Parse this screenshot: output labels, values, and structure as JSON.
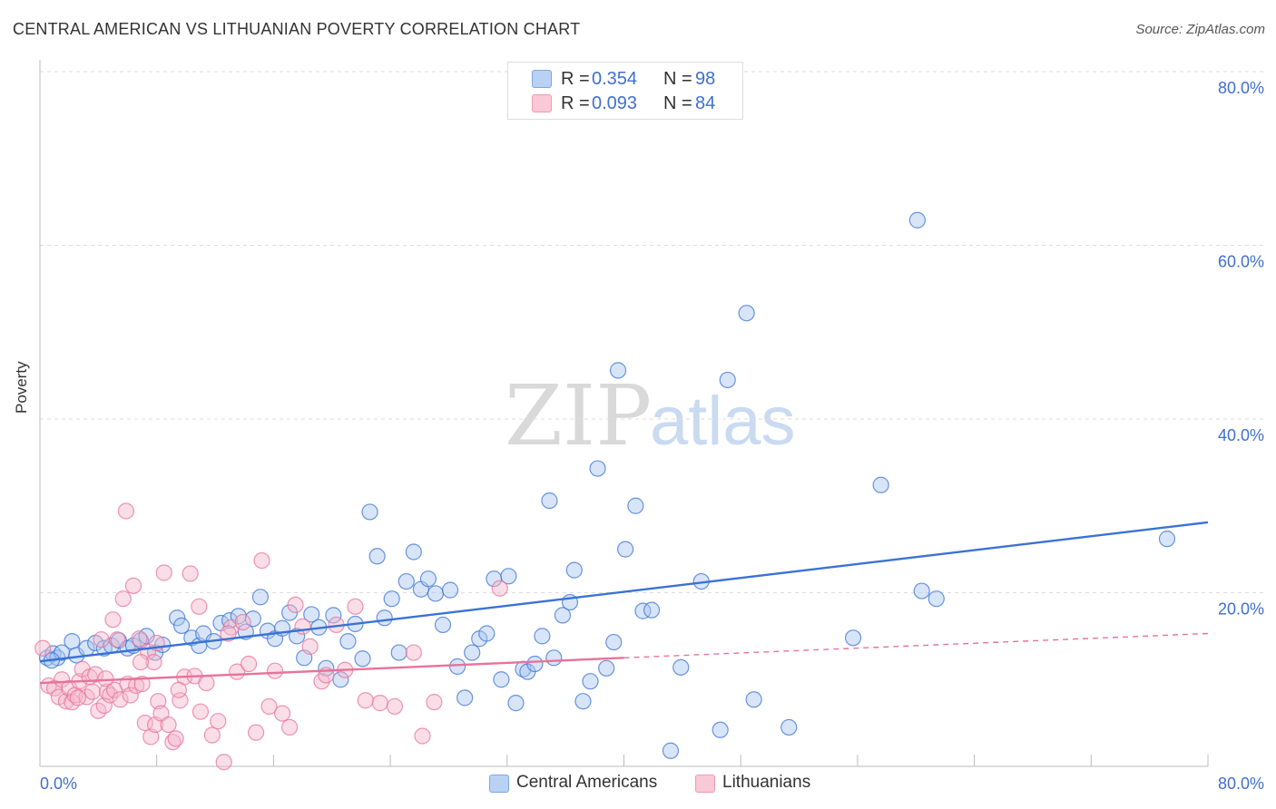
{
  "title": "CENTRAL AMERICAN VS LITHUANIAN POVERTY CORRELATION CHART",
  "source": "Source: ZipAtlas.com",
  "watermark": {
    "zip": "ZIP",
    "atlas": "atlas"
  },
  "colors": {
    "blue": "#3a72d4",
    "blue_fill": "#a9c6ef",
    "pink": "#e8729a",
    "pink_fill": "#f4b6c9",
    "axis_label": "#3f6fd0",
    "grid": "#dddddd"
  },
  "legend_top": {
    "rows": [
      {
        "r_label": "R =",
        "r_value": "0.354",
        "n_label": "N =",
        "n_value": "98",
        "series": "blue"
      },
      {
        "r_label": "R =",
        "r_value": "0.093",
        "n_label": "N =",
        "n_value": "84",
        "series": "pink"
      }
    ]
  },
  "legend_bottom": {
    "items": [
      {
        "label": "Central Americans",
        "series": "blue"
      },
      {
        "label": "Lithuanians",
        "series": "pink"
      }
    ]
  },
  "chart_data": {
    "type": "scatter",
    "title": "CENTRAL AMERICAN VS LITHUANIAN POVERTY CORRELATION CHART",
    "xlabel": "",
    "ylabel": "Poverty",
    "xlim": [
      0,
      80
    ],
    "ylim": [
      0,
      80
    ],
    "x_tick_labels": [
      "0.0%",
      "80.0%"
    ],
    "y_tick_labels": [
      "20.0%",
      "40.0%",
      "60.0%",
      "80.0%"
    ],
    "y_ticks": [
      20,
      40,
      60,
      80
    ],
    "x_minor_ticks": [
      8,
      16,
      24,
      32,
      40,
      48,
      56,
      64,
      72,
      80
    ],
    "grid": true,
    "legend_position": "top-center",
    "series": [
      {
        "name": "Central Americans",
        "color": "#3a72d4",
        "trend": {
          "x": [
            0,
            80
          ],
          "y": [
            12.1,
            28.1
          ],
          "style": "solid"
        },
        "points": [
          [
            0.5,
            12.5
          ],
          [
            0.9,
            13.0
          ],
          [
            1.2,
            12.5
          ],
          [
            1.5,
            13.1
          ],
          [
            2.2,
            14.4
          ],
          [
            2.5,
            12.8
          ],
          [
            3.2,
            13.6
          ],
          [
            3.8,
            14.2
          ],
          [
            4.4,
            13.6
          ],
          [
            4.9,
            13.9
          ],
          [
            5.4,
            14.5
          ],
          [
            6.0,
            13.6
          ],
          [
            6.4,
            13.9
          ],
          [
            6.9,
            14.5
          ],
          [
            7.3,
            15.0
          ],
          [
            7.9,
            13.1
          ],
          [
            8.4,
            14.0
          ],
          [
            9.4,
            17.1
          ],
          [
            9.7,
            16.2
          ],
          [
            10.4,
            14.8
          ],
          [
            10.9,
            13.9
          ],
          [
            11.2,
            15.3
          ],
          [
            11.9,
            14.4
          ],
          [
            12.4,
            16.5
          ],
          [
            13.0,
            16.8
          ],
          [
            13.6,
            17.3
          ],
          [
            14.1,
            15.5
          ],
          [
            14.6,
            17.0
          ],
          [
            15.1,
            19.5
          ],
          [
            15.6,
            15.6
          ],
          [
            16.1,
            14.7
          ],
          [
            16.6,
            15.9
          ],
          [
            17.1,
            17.7
          ],
          [
            17.6,
            15.0
          ],
          [
            18.1,
            12.5
          ],
          [
            18.6,
            17.5
          ],
          [
            19.1,
            16.0
          ],
          [
            19.6,
            11.3
          ],
          [
            20.1,
            17.4
          ],
          [
            20.6,
            10.0
          ],
          [
            21.1,
            14.4
          ],
          [
            21.6,
            16.4
          ],
          [
            22.1,
            12.4
          ],
          [
            22.6,
            29.3
          ],
          [
            23.1,
            24.2
          ],
          [
            23.6,
            17.1
          ],
          [
            24.1,
            19.3
          ],
          [
            24.6,
            13.1
          ],
          [
            25.1,
            21.3
          ],
          [
            25.6,
            24.7
          ],
          [
            26.1,
            20.4
          ],
          [
            26.6,
            21.6
          ],
          [
            27.1,
            19.9
          ],
          [
            27.6,
            16.3
          ],
          [
            28.1,
            20.3
          ],
          [
            28.6,
            11.5
          ],
          [
            29.1,
            7.9
          ],
          [
            29.6,
            13.1
          ],
          [
            30.1,
            14.7
          ],
          [
            30.6,
            15.3
          ],
          [
            31.1,
            21.6
          ],
          [
            31.6,
            10.0
          ],
          [
            32.1,
            21.9
          ],
          [
            32.6,
            7.3
          ],
          [
            33.1,
            11.2
          ],
          [
            33.4,
            10.9
          ],
          [
            33.9,
            11.8
          ],
          [
            34.4,
            15.0
          ],
          [
            34.9,
            30.6
          ],
          [
            35.2,
            12.5
          ],
          [
            35.8,
            17.4
          ],
          [
            36.3,
            18.9
          ],
          [
            36.6,
            22.6
          ],
          [
            37.2,
            7.5
          ],
          [
            37.7,
            9.8
          ],
          [
            38.2,
            34.3
          ],
          [
            38.8,
            11.3
          ],
          [
            39.3,
            14.3
          ],
          [
            39.6,
            45.6
          ],
          [
            40.1,
            25.0
          ],
          [
            40.8,
            30.0
          ],
          [
            41.3,
            17.9
          ],
          [
            41.9,
            18.0
          ],
          [
            43.2,
            1.8
          ],
          [
            43.9,
            11.4
          ],
          [
            45.3,
            21.3
          ],
          [
            46.6,
            4.2
          ],
          [
            47.1,
            44.5
          ],
          [
            48.4,
            52.2
          ],
          [
            48.9,
            7.7
          ],
          [
            51.3,
            4.5
          ],
          [
            55.7,
            14.8
          ],
          [
            57.6,
            32.4
          ],
          [
            60.1,
            62.9
          ],
          [
            60.4,
            20.2
          ],
          [
            61.4,
            19.3
          ],
          [
            77.2,
            26.2
          ],
          [
            0.8,
            12.2
          ]
        ]
      },
      {
        "name": "Lithuanians",
        "color": "#e8729a",
        "trend": {
          "x": [
            0,
            40
          ],
          "y": [
            9.6,
            12.5
          ],
          "style": "solid"
        },
        "trend_extended": {
          "x": [
            40,
            80
          ],
          "y": [
            12.5,
            15.3
          ],
          "style": "dashed"
        },
        "points": [
          [
            0.2,
            13.6
          ],
          [
            0.6,
            9.3
          ],
          [
            1.0,
            9.0
          ],
          [
            1.3,
            8.0
          ],
          [
            1.5,
            10.0
          ],
          [
            1.8,
            7.5
          ],
          [
            2.0,
            9.0
          ],
          [
            2.2,
            7.4
          ],
          [
            2.4,
            8.2
          ],
          [
            2.7,
            9.8
          ],
          [
            2.9,
            11.2
          ],
          [
            3.2,
            8.0
          ],
          [
            3.4,
            10.3
          ],
          [
            3.6,
            8.6
          ],
          [
            3.8,
            10.6
          ],
          [
            4.0,
            6.4
          ],
          [
            4.2,
            14.6
          ],
          [
            4.4,
            7.0
          ],
          [
            4.6,
            8.6
          ],
          [
            4.8,
            8.2
          ],
          [
            5.0,
            16.9
          ],
          [
            5.1,
            8.8
          ],
          [
            5.3,
            14.6
          ],
          [
            5.5,
            7.7
          ],
          [
            5.7,
            19.3
          ],
          [
            5.9,
            29.4
          ],
          [
            6.0,
            9.5
          ],
          [
            6.2,
            8.2
          ],
          [
            6.4,
            20.8
          ],
          [
            6.6,
            9.3
          ],
          [
            6.8,
            14.7
          ],
          [
            7.0,
            9.5
          ],
          [
            7.2,
            5.0
          ],
          [
            7.4,
            13.2
          ],
          [
            7.6,
            3.4
          ],
          [
            7.8,
            12.0
          ],
          [
            7.9,
            4.8
          ],
          [
            8.1,
            7.5
          ],
          [
            8.3,
            6.1
          ],
          [
            8.5,
            22.3
          ],
          [
            8.8,
            4.8
          ],
          [
            9.1,
            2.8
          ],
          [
            9.3,
            3.2
          ],
          [
            9.6,
            7.6
          ],
          [
            9.9,
            10.3
          ],
          [
            10.3,
            22.2
          ],
          [
            10.6,
            10.4
          ],
          [
            10.9,
            18.4
          ],
          [
            11.4,
            9.6
          ],
          [
            11.8,
            3.6
          ],
          [
            12.2,
            5.2
          ],
          [
            12.6,
            0.5
          ],
          [
            13.1,
            16.0
          ],
          [
            13.5,
            10.9
          ],
          [
            13.9,
            16.6
          ],
          [
            14.3,
            11.8
          ],
          [
            14.8,
            3.9
          ],
          [
            15.2,
            23.7
          ],
          [
            15.7,
            6.9
          ],
          [
            16.1,
            11.0
          ],
          [
            16.6,
            6.1
          ],
          [
            17.1,
            4.5
          ],
          [
            17.5,
            18.6
          ],
          [
            18.0,
            16.1
          ],
          [
            18.5,
            13.8
          ],
          [
            19.3,
            9.8
          ],
          [
            19.6,
            10.5
          ],
          [
            20.3,
            16.3
          ],
          [
            20.9,
            11.1
          ],
          [
            21.6,
            18.4
          ],
          [
            22.3,
            7.6
          ],
          [
            23.3,
            7.3
          ],
          [
            24.3,
            6.9
          ],
          [
            25.6,
            13.1
          ],
          [
            26.2,
            3.5
          ],
          [
            27.0,
            7.4
          ],
          [
            31.5,
            20.5
          ],
          [
            2.6,
            7.9
          ],
          [
            4.5,
            10.1
          ],
          [
            6.9,
            12.0
          ],
          [
            8.0,
            14.2
          ],
          [
            9.5,
            8.8
          ],
          [
            11.0,
            6.3
          ],
          [
            12.9,
            15.3
          ]
        ]
      }
    ]
  }
}
